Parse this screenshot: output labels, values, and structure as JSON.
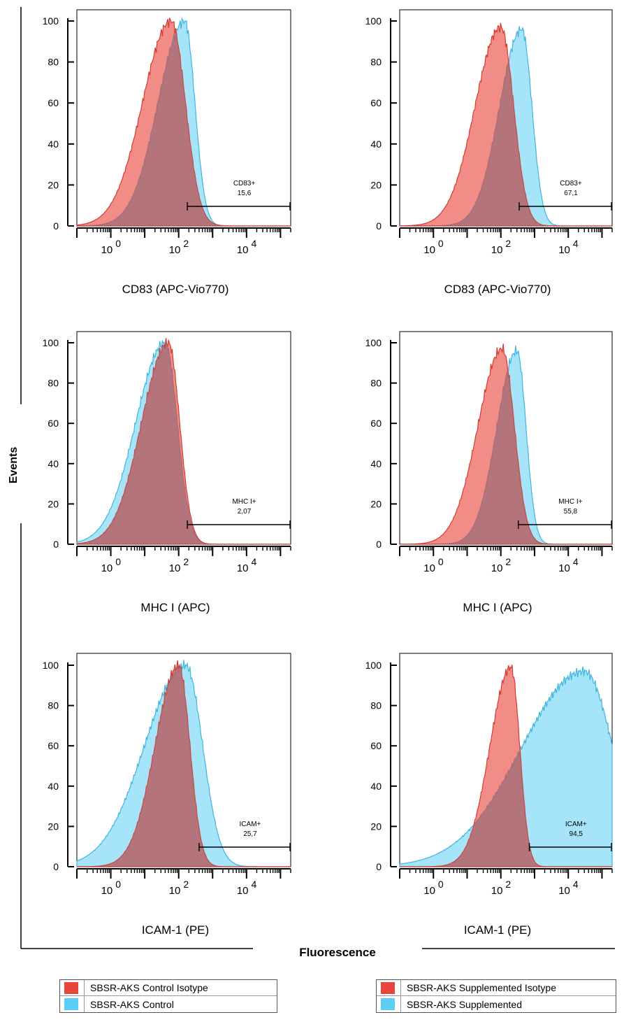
{
  "figure": {
    "y_axis_title": "Events",
    "x_axis_title": "Fluorescence"
  },
  "colors": {
    "isotype": "#e8453c",
    "sample": "#5ccdf5",
    "overlap": "#9c6a75"
  },
  "legend_left": [
    {
      "label": "SBSR-AKS Control Isotype",
      "color": "#e8453c"
    },
    {
      "label": "SBSR-AKS Control",
      "color": "#5ccdf5"
    }
  ],
  "legend_right": [
    {
      "label": "SBSR-AKS Supplemented Isotype",
      "color": "#e8453c"
    },
    {
      "label": "SBSR-AKS Supplemented",
      "color": "#5ccdf5"
    }
  ],
  "chart_data": [
    {
      "type": "area",
      "xlabel": "CD83 (APC-Vio770)",
      "x_scale": "log",
      "xlim": [
        0.1,
        200000
      ],
      "x_ticks": [
        "10 0",
        "10 2",
        "10 4"
      ],
      "ylim": [
        0,
        100
      ],
      "y_ticks": [
        "0",
        "20",
        "40",
        "60",
        "80",
        "100"
      ],
      "gate": {
        "name": "CD83+",
        "value": "15,6",
        "from": 180,
        "to": 200000
      },
      "series": [
        {
          "peak_x": 60,
          "width": 0.42,
          "left_tail": 2.0,
          "peak": 100
        },
        {
          "peak_x": 150,
          "width": 0.3,
          "left_tail": 2.6,
          "peak": 100
        }
      ]
    },
    {
      "type": "area",
      "xlabel": "CD83 (APC-Vio770)",
      "x_scale": "log",
      "xlim": [
        0.1,
        200000
      ],
      "x_ticks": [
        "10 0",
        "10 2",
        "10 4"
      ],
      "ylim": [
        0,
        100
      ],
      "y_ticks": [
        "0",
        "20",
        "40",
        "60",
        "80",
        "100"
      ],
      "gate": {
        "name": "CD83+",
        "value": "67,1",
        "from": 350,
        "to": 200000
      },
      "series": [
        {
          "peak_x": 100,
          "width": 0.38,
          "left_tail": 2.0,
          "peak": 97
        },
        {
          "peak_x": 420,
          "width": 0.3,
          "left_tail": 2.2,
          "peak": 96
        }
      ]
    },
    {
      "type": "area",
      "xlabel": "MHC I (APC)",
      "x_scale": "log",
      "xlim": [
        0.1,
        200000
      ],
      "x_ticks": [
        "10 0",
        "10 2",
        "10 4"
      ],
      "ylim": [
        0,
        100
      ],
      "y_ticks": [
        "0",
        "20",
        "40",
        "60",
        "80",
        "100"
      ],
      "gate": {
        "name": "MHC I+",
        "value": "2,07",
        "from": 180,
        "to": 200000
      },
      "series": [
        {
          "peak_x": 50,
          "width": 0.33,
          "left_tail": 2.4,
          "peak": 100
        },
        {
          "peak_x": 40,
          "width": 0.36,
          "left_tail": 2.4,
          "peak": 100
        }
      ]
    },
    {
      "type": "area",
      "xlabel": "MHC I (APC)",
      "x_scale": "log",
      "xlim": [
        0.1,
        200000
      ],
      "x_ticks": [
        "10 0",
        "10 2",
        "10 4"
      ],
      "ylim": [
        0,
        100
      ],
      "y_ticks": [
        "0",
        "20",
        "40",
        "60",
        "80",
        "100"
      ],
      "gate": {
        "name": "MHC I+",
        "value": "55,8",
        "from": 330,
        "to": 200000
      },
      "series": [
        {
          "peak_x": 110,
          "width": 0.36,
          "left_tail": 2.0,
          "peak": 97
        },
        {
          "peak_x": 300,
          "width": 0.27,
          "left_tail": 2.2,
          "peak": 96
        }
      ]
    },
    {
      "type": "area",
      "xlabel": "ICAM-1 (PE)",
      "x_scale": "log",
      "xlim": [
        0.1,
        200000
      ],
      "x_ticks": [
        "10 0",
        "10 2",
        "10 4"
      ],
      "ylim": [
        0,
        100
      ],
      "y_ticks": [
        "0",
        "20",
        "40",
        "60",
        "80",
        "100"
      ],
      "gate": {
        "name": "ICAM+",
        "value": "25,7",
        "from": 400,
        "to": 200000
      },
      "series": [
        {
          "peak_x": 100,
          "width": 0.33,
          "left_tail": 2.1,
          "peak": 100
        },
        {
          "peak_x": 160,
          "width": 0.5,
          "left_tail": 2.4,
          "peak": 100
        }
      ]
    },
    {
      "type": "area",
      "xlabel": "ICAM-1 (PE)",
      "x_scale": "log",
      "xlim": [
        0.1,
        200000
      ],
      "x_ticks": [
        "10 0",
        "10 2",
        "10 4"
      ],
      "ylim": [
        0,
        100
      ],
      "y_ticks": [
        "0",
        "20",
        "40",
        "60",
        "80",
        "100"
      ],
      "gate": {
        "name": "ICAM+",
        "value": "94,5",
        "from": 700,
        "to": 200000
      },
      "series": [
        {
          "peak_x": 200,
          "width": 0.26,
          "left_tail": 2.4,
          "peak": 99
        },
        {
          "peak_x": 30000,
          "width": 0.85,
          "left_tail": 2.2,
          "peak": 97
        }
      ]
    }
  ]
}
